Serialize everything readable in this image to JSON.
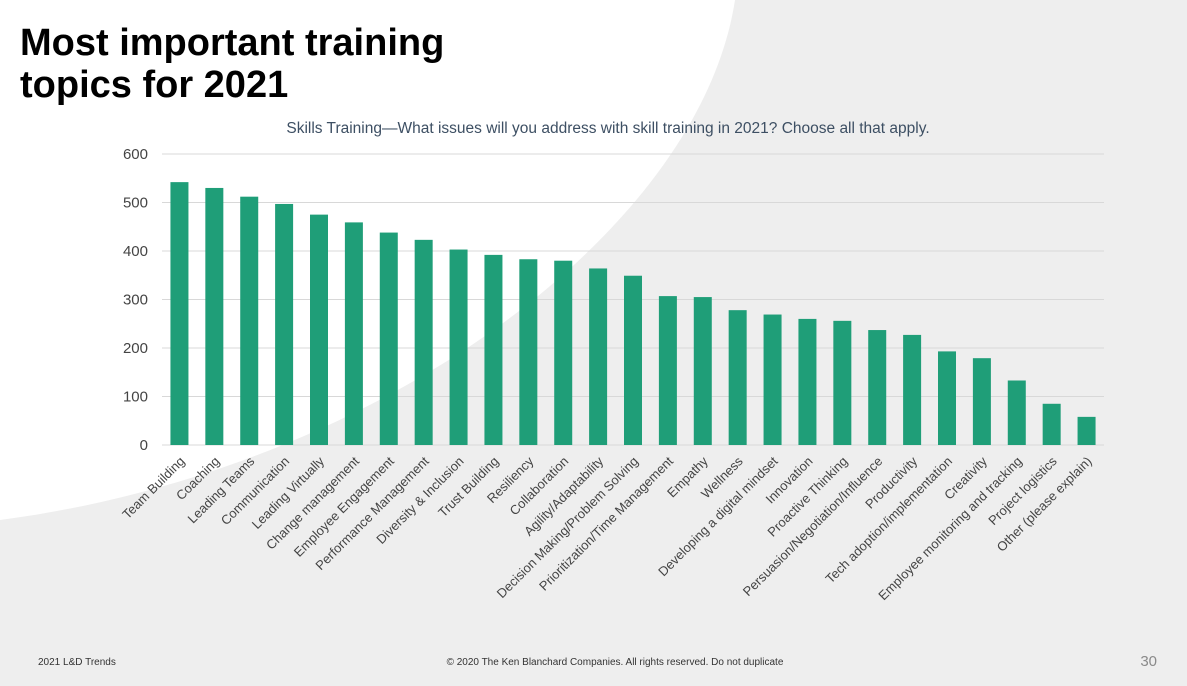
{
  "slide": {
    "title_line1": "Most important training",
    "title_line2": "topics for 2021",
    "footer_left": "2021 L&D Trends",
    "footer_center": "© 2020 The Ken Blanchard Companies. All rights reserved. Do not duplicate",
    "page_number": "30"
  },
  "chart_data": {
    "type": "bar",
    "title": "Skills Training—What issues will you address with skill training in 2021? Choose all that apply.",
    "xlabel": "",
    "ylabel": "",
    "ylim": [
      0,
      600
    ],
    "yticks": [
      0,
      100,
      200,
      300,
      400,
      500,
      600
    ],
    "grid": true,
    "bar_color": "#1f9e78",
    "categories": [
      "Team Building",
      "Coaching",
      "Leading Teams",
      "Communication",
      "Leading Virtually",
      "Change management",
      "Employee Engagement",
      "Performance Management",
      "Diversity & Inclusion",
      "Trust Building",
      "Resiliency",
      "Collaboration",
      "Agility/Adaptability",
      "Decision Making/Problem Solving",
      "Prioritization/Time Management",
      "Empathy",
      "Wellness",
      "Developing a digital mindset",
      "Innovation",
      "Proactive Thinking",
      "Persuasion/Negotiation/Influence",
      "Productivity",
      "Tech adoption/implementation",
      "Creativity",
      "Employee monitoring and tracking",
      "Project logistics",
      "Other (please explain)"
    ],
    "values": [
      542,
      530,
      512,
      497,
      475,
      459,
      438,
      423,
      403,
      392,
      383,
      380,
      364,
      349,
      307,
      305,
      278,
      269,
      260,
      256,
      237,
      227,
      193,
      179,
      133,
      85,
      58
    ]
  }
}
